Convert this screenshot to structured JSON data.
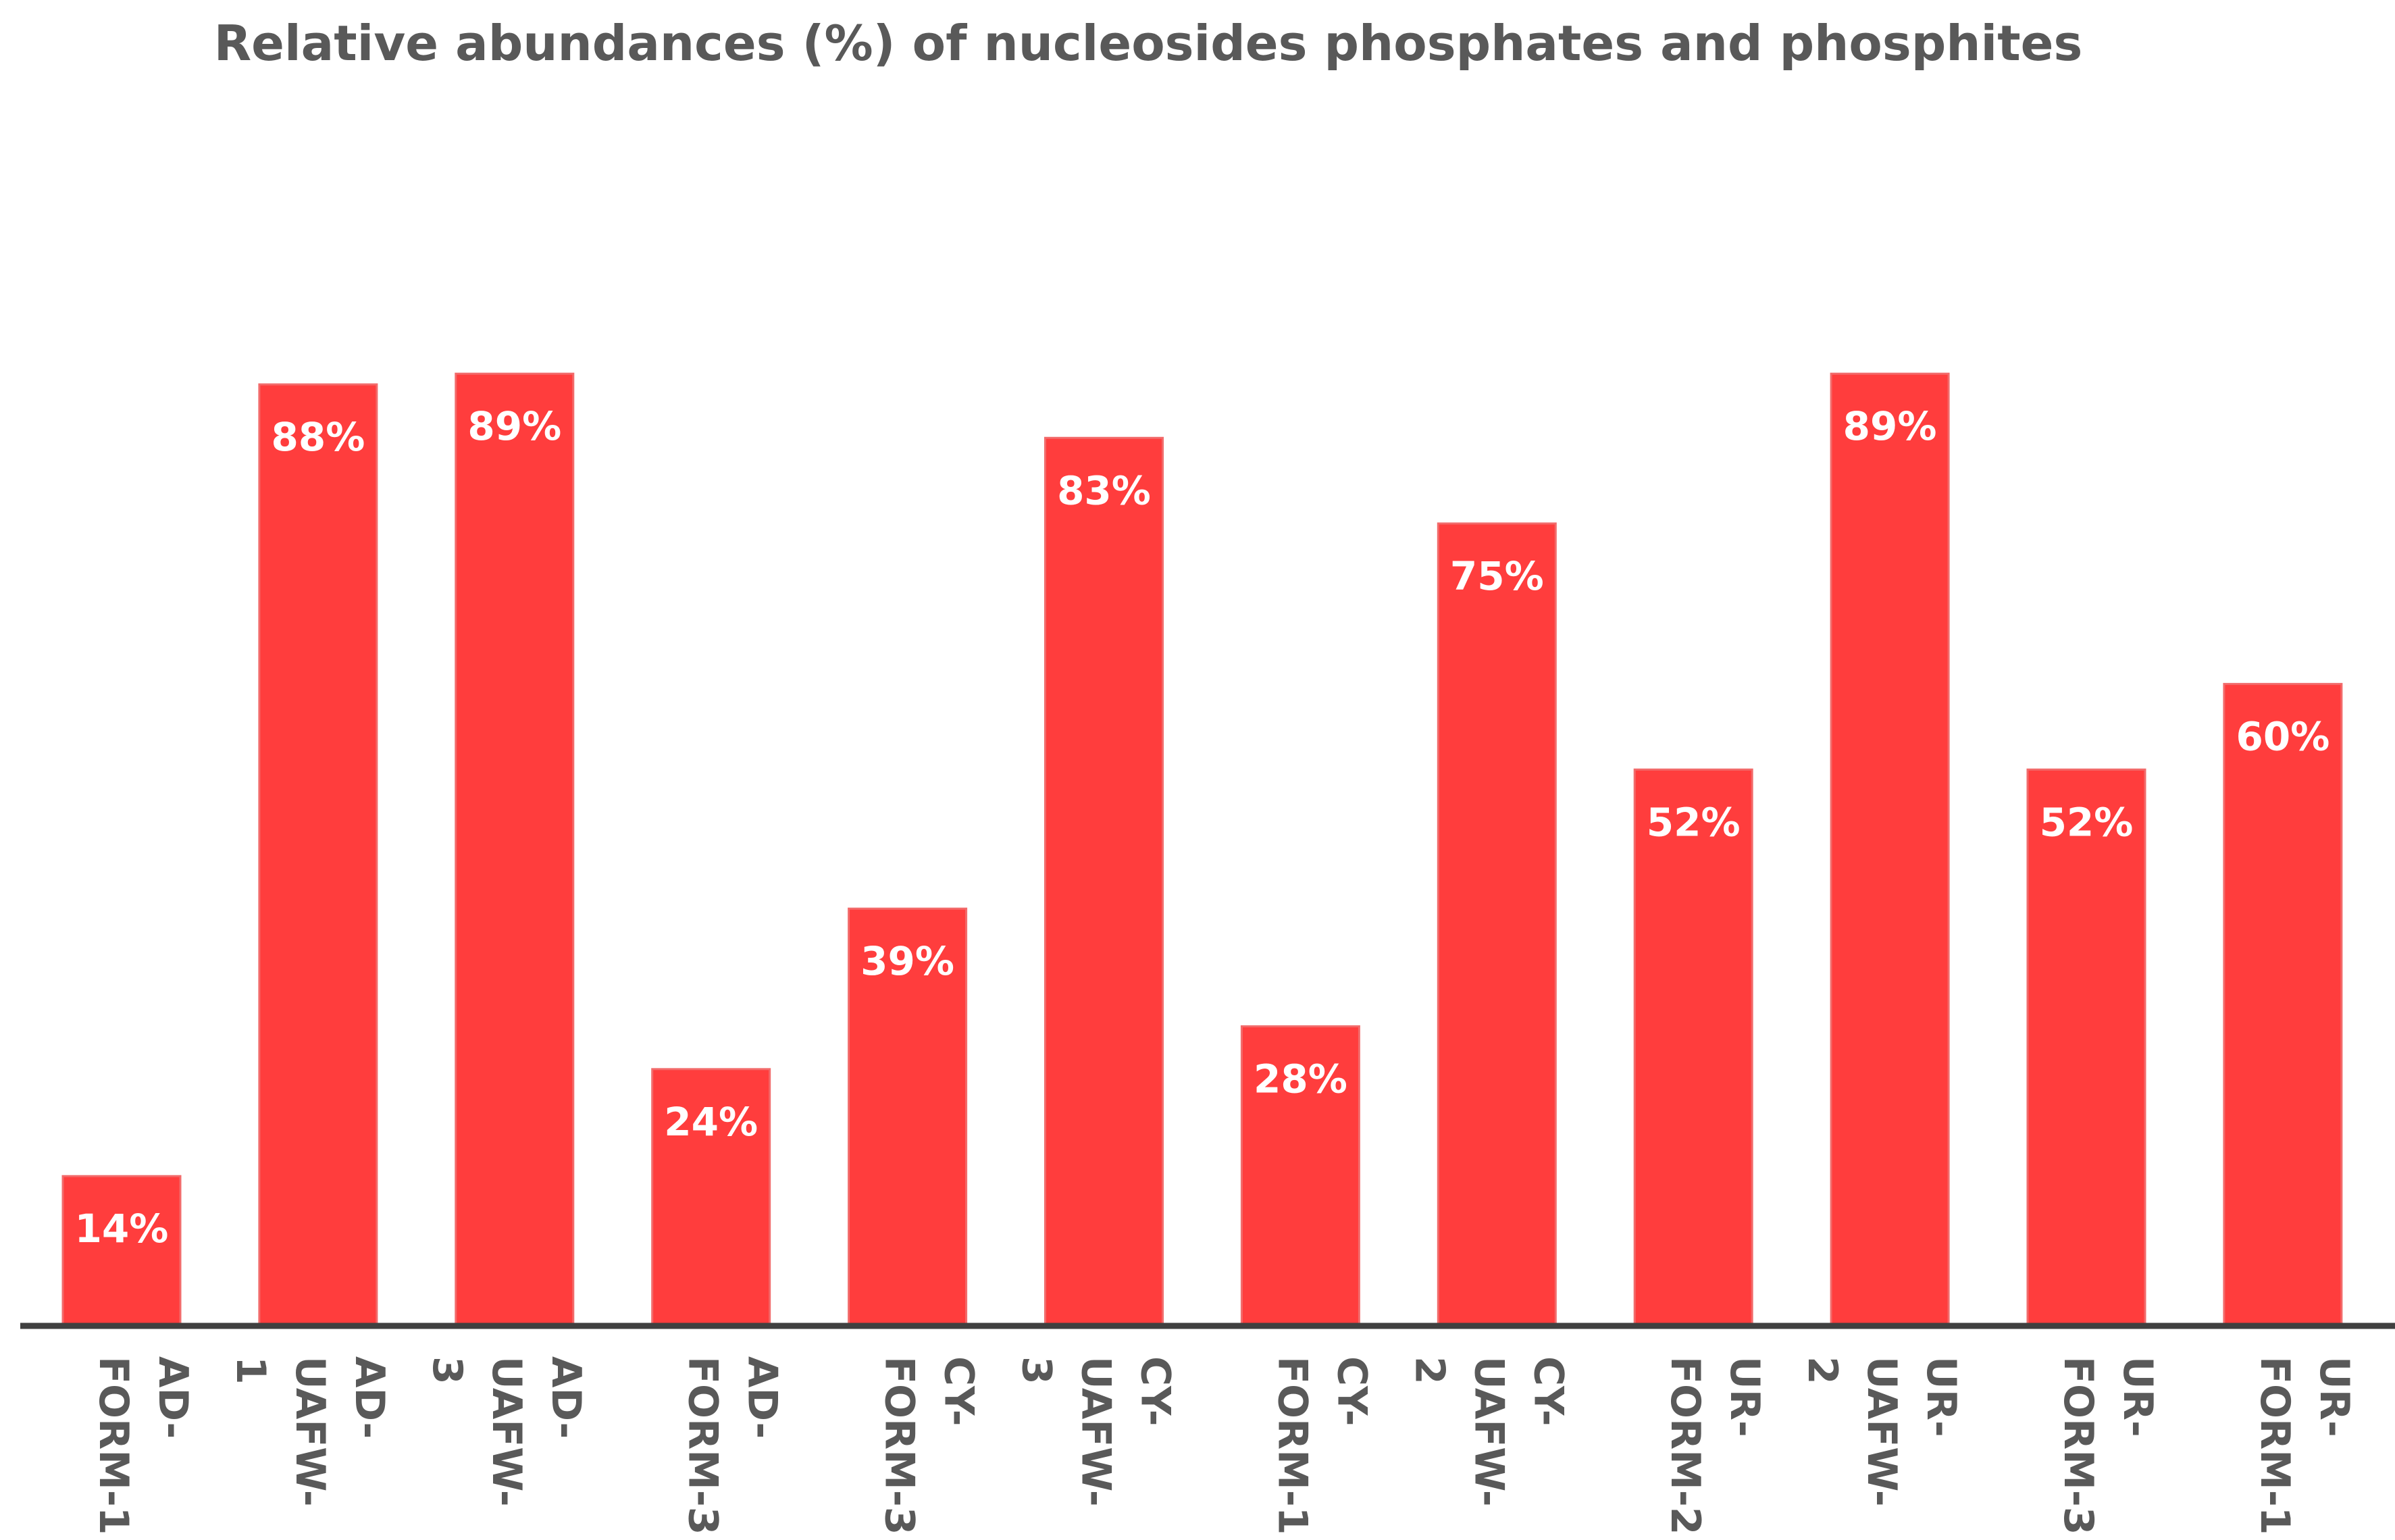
{
  "chart_data": {
    "type": "bar",
    "title": "Relative abundances (%) of nucleosides phosphates and phosphites",
    "xlabel": "",
    "ylabel": "",
    "ylim": [
      0,
      100
    ],
    "grid": false,
    "categories": [
      "AD-FORM-1",
      "AD-UAFW-1",
      "AD-UAFW-3",
      "AD-FORM-3",
      "CY-FORM-3",
      "CY-UAFW-3",
      "CY-FORM-1",
      "CY-UAFW-2",
      "UR-FORM-2",
      "UR-UAFW-2",
      "UR-FORM-3",
      "UR-FORM-1"
    ],
    "tick_label_lines": [
      [
        "AD-",
        "FORM-1"
      ],
      [
        "AD-",
        "UAFW-",
        "1"
      ],
      [
        "AD-",
        "UAFW-",
        "3"
      ],
      [
        "AD-",
        "FORM-3"
      ],
      [
        "CY-",
        "FORM-3"
      ],
      [
        "CY-",
        "UAFW-",
        "3"
      ],
      [
        "CY-",
        "FORM-1"
      ],
      [
        "CY-",
        "UAFW-",
        "2"
      ],
      [
        "UR-",
        "FORM-2"
      ],
      [
        "UR-",
        "UAFW-",
        "2"
      ],
      [
        "UR-",
        "FORM-3"
      ],
      [
        "UR-",
        "FORM-1"
      ]
    ],
    "values": [
      14,
      88,
      89,
      24,
      39,
      83,
      28,
      75,
      52,
      89,
      52,
      60
    ],
    "data_labels": [
      "14%",
      "88%",
      "89%",
      "24%",
      "39%",
      "83%",
      "28%",
      "75%",
      "52%",
      "89%",
      "52%",
      "60%"
    ],
    "colors": {
      "bar": "#ff3d3d",
      "bar_edge": "#f26b6b",
      "label": "#ffffff",
      "axis": "#404040",
      "text": "#595959"
    }
  }
}
